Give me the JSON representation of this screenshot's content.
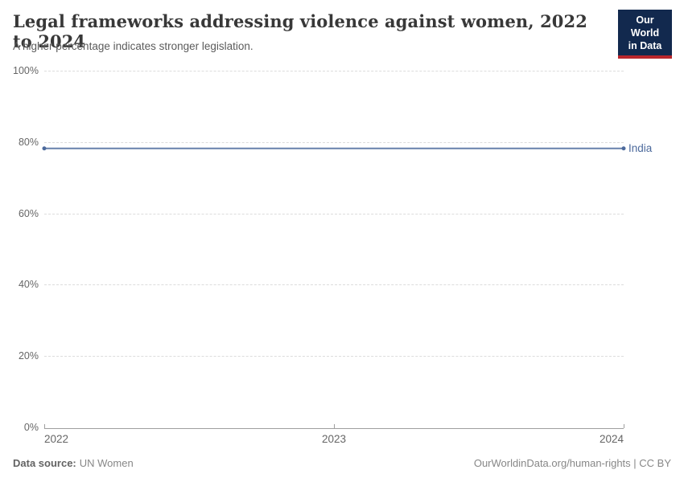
{
  "header": {
    "title": "Legal frameworks addressing violence against women, 2022 to 2024",
    "subtitle": "A higher percentage indicates stronger legislation."
  },
  "logo": {
    "line1": "Our World",
    "line2": "in Data"
  },
  "chart_data": {
    "type": "line",
    "title": "Legal frameworks addressing violence against women, 2022 to 2024",
    "subtitle": "A higher percentage indicates stronger legislation.",
    "x": [
      "2022",
      "2023",
      "2024"
    ],
    "series": [
      {
        "name": "India",
        "values": [
          78.2,
          78.2,
          78.2
        ],
        "color": "#4c6a9c"
      }
    ],
    "ylim": [
      0,
      100
    ],
    "yticks": [
      0,
      20,
      40,
      60,
      80,
      100
    ],
    "ytick_labels": [
      "0%",
      "20%",
      "40%",
      "60%",
      "80%",
      "100%"
    ],
    "xlabel": "",
    "ylabel": "",
    "grid": "horizontal-dashed",
    "legend": "inline-entity-label"
  },
  "footer": {
    "source_label": "Data source:",
    "source_value": "UN Women",
    "attribution": "OurWorldinData.org/human-rights | CC BY"
  },
  "colors": {
    "logo_navy": "#12294e",
    "logo_red": "#b9262c",
    "series_blue": "#4c6a9c",
    "gridline": "#dcdcdc",
    "axis": "#9e9e9e",
    "tick_text": "#666666",
    "footer_text": "#878787"
  }
}
